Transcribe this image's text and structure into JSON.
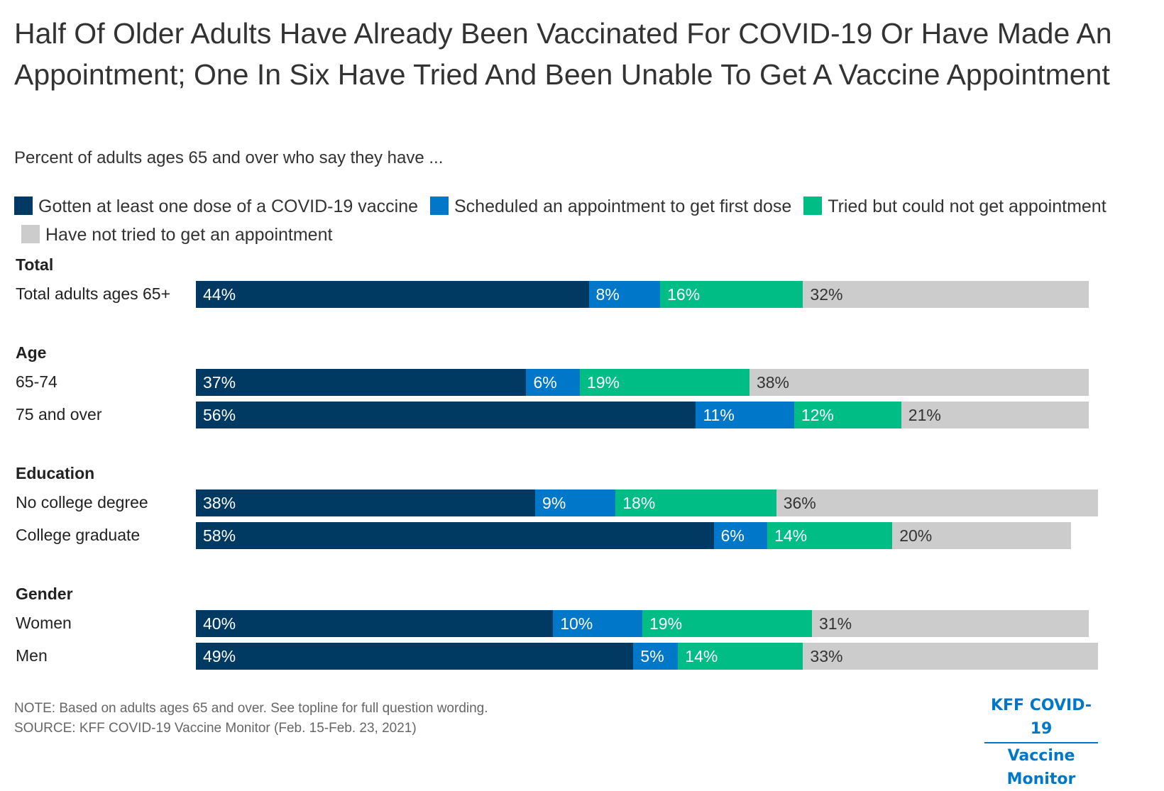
{
  "header": {
    "title": "Half Of Older Adults Have Already Been Vaccinated For COVID-19 Or Have Made An Appointment; One In Six Have Tried And Been Unable To Get A Vaccine Appointment",
    "subtitle": "Percent of adults ages 65 and over who say they have ..."
  },
  "chart_data": {
    "type": "bar",
    "orientation": "horizontal",
    "stacked": true,
    "title": "Half Of Older Adults Have Already Been Vaccinated For COVID-19 Or Have Made An Appointment; One In Six Have Tried And Been Unable To Get A Vaccine Appointment",
    "subtitle": "Percent of adults ages 65 and over who say they have ...",
    "xlabel": "",
    "ylabel": "",
    "xlim": [
      0,
      100
    ],
    "grid": false,
    "legend_position": "top",
    "series": [
      {
        "name": "Gotten at least one dose of a COVID-19 vaccine",
        "color": "#003a63",
        "text_color": "#ffffff"
      },
      {
        "name": "Scheduled an appointment to get first dose",
        "color": "#0077c8",
        "text_color": "#ffffff"
      },
      {
        "name": "Tried but could not get appointment",
        "color": "#00bd86",
        "text_color": "#ffffff"
      },
      {
        "name": "Have not tried to get an appointment",
        "color": "#cccccc",
        "text_color": "#333333"
      }
    ],
    "groups": [
      {
        "label": "Total",
        "rows": [
          {
            "label": "Total adults ages 65+",
            "values": [
              44,
              8,
              16,
              32
            ]
          }
        ]
      },
      {
        "label": "Age",
        "rows": [
          {
            "label": "65-74",
            "values": [
              37,
              6,
              19,
              38
            ]
          },
          {
            "label": "75 and over",
            "values": [
              56,
              11,
              12,
              21
            ]
          }
        ]
      },
      {
        "label": "Education",
        "rows": [
          {
            "label": "No college degree",
            "values": [
              38,
              9,
              18,
              36
            ]
          },
          {
            "label": "College graduate",
            "values": [
              58,
              6,
              14,
              20
            ]
          }
        ]
      },
      {
        "label": "Gender",
        "rows": [
          {
            "label": "Women",
            "values": [
              40,
              10,
              19,
              31
            ]
          },
          {
            "label": "Men",
            "values": [
              49,
              5,
              14,
              33
            ]
          }
        ]
      }
    ]
  },
  "footer": {
    "note": "NOTE: Based on adults ages 65 and over. See topline for full question wording.",
    "source": "SOURCE: KFF COVID-19 Vaccine Monitor (Feb. 15-Feb. 23, 2021)"
  },
  "logo": {
    "line1": "KFF COVID-19",
    "line2": "Vaccine Monitor"
  }
}
